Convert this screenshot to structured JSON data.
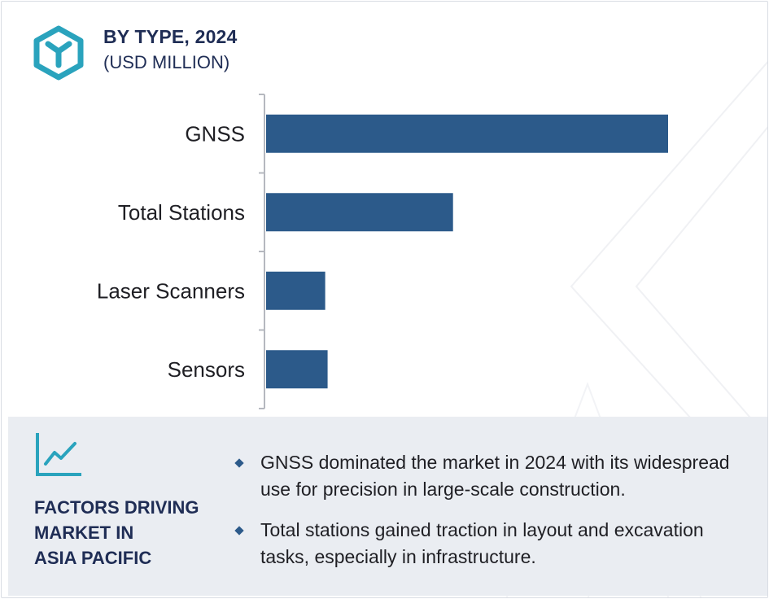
{
  "header": {
    "title": "BY TYPE, 2024",
    "subtitle": "(USD MILLION)",
    "logo_icon": "hexagon-y-logo-icon"
  },
  "colors": {
    "bar": "#2c5a8a",
    "title": "#1f2d55",
    "accent": "#2aa3bd",
    "panel_bg": "#eaedf2"
  },
  "chart_data": {
    "type": "bar",
    "orientation": "horizontal",
    "categories": [
      "GNSS",
      "Total Stations",
      "Laser Scanners",
      "Sensors"
    ],
    "values": [
      100,
      46.5,
      14.7,
      15.3
    ],
    "xlim": [
      0,
      100
    ],
    "grid": false,
    "legend": "none",
    "value_axis_shown": false
  },
  "panel": {
    "icon": "trend-line-chart-icon",
    "heading_lines": [
      "FACTORS DRIVING",
      "MARKET IN",
      "ASIA PACIFIC"
    ],
    "bullets": [
      "GNSS dominated the market in 2024 with its widespread use for precision in large-scale construction.",
      "Total stations gained traction in layout and excavation tasks, especially in infrastructure."
    ]
  }
}
